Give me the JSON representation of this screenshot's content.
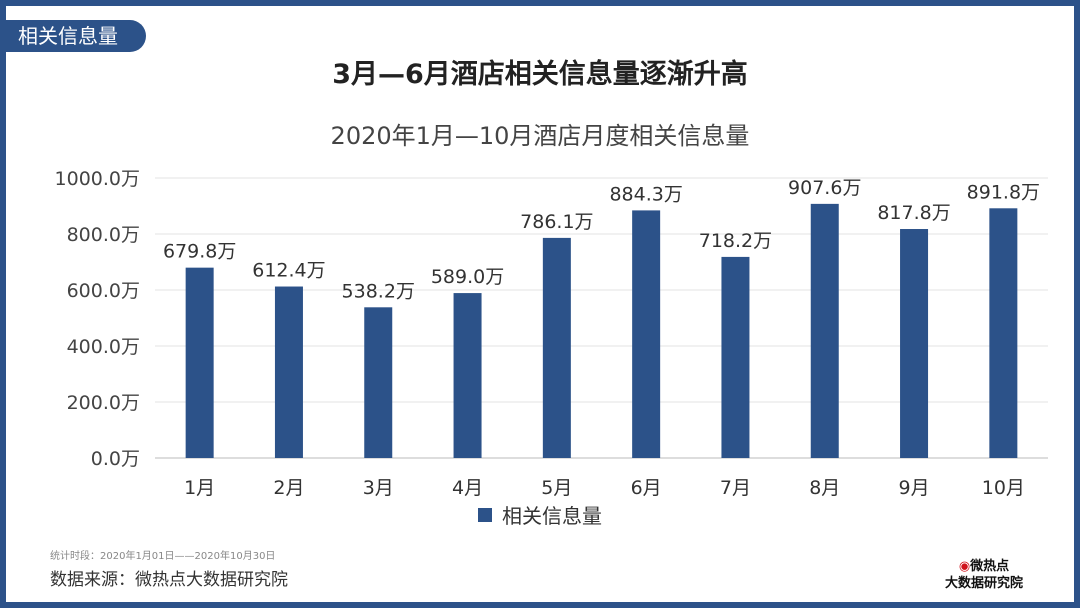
{
  "tag": "相关信息量",
  "title": "3月—6月酒店相关信息量逐渐升高",
  "footer": {
    "period": "统计时段：2020年1月01日——2020年10月30日",
    "source": "数据来源：微热点大数据研究院",
    "logo_line1": "微热点",
    "logo_line2": "大数据研究院"
  },
  "colors": {
    "frame": "#2c5289",
    "bar": "#2c5289"
  },
  "chart_data": {
    "type": "bar",
    "title": "2020年1月—10月酒店月度相关信息量",
    "categories": [
      "1月",
      "2月",
      "3月",
      "4月",
      "5月",
      "6月",
      "7月",
      "8月",
      "9月",
      "10月"
    ],
    "series": [
      {
        "name": "相关信息量",
        "values": [
          679.8,
          612.4,
          538.2,
          589.0,
          786.1,
          884.3,
          718.2,
          907.6,
          817.8,
          891.8
        ]
      }
    ],
    "data_labels": [
      "679.8万",
      "612.4万",
      "538.2万",
      "589.0万",
      "786.1万",
      "884.3万",
      "718.2万",
      "907.6万",
      "817.8万",
      "891.8万"
    ],
    "yticks": [
      "0.0万",
      "200.0万",
      "400.0万",
      "600.0万",
      "800.0万",
      "1000.0万"
    ],
    "ylim": [
      0,
      1000
    ],
    "grid": true,
    "legend": "bottom"
  }
}
